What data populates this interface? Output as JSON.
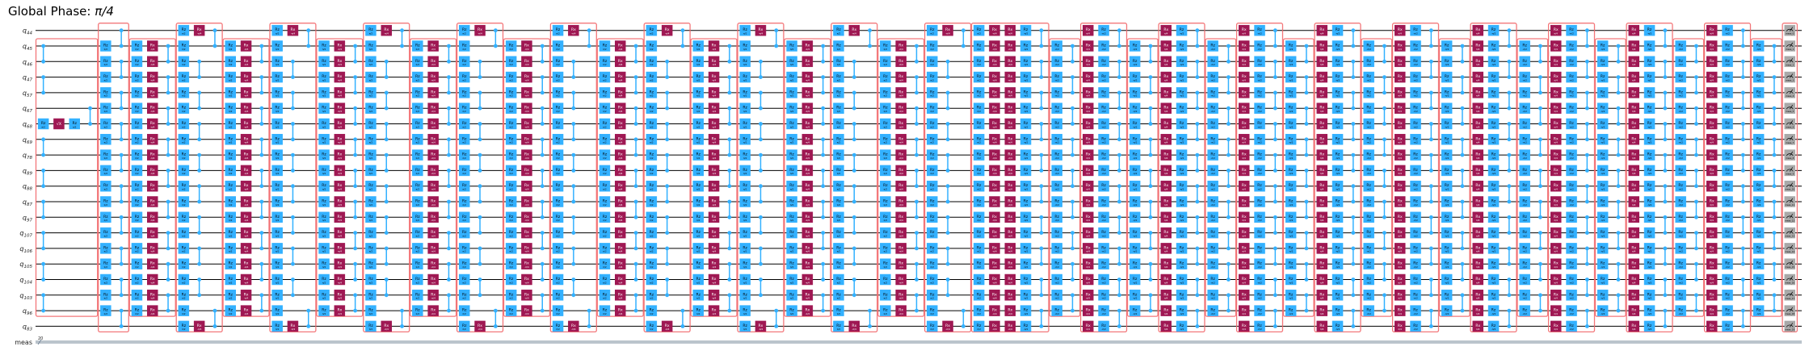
{
  "title": {
    "prefix": "Global Phase: ",
    "phase": "π/4"
  },
  "qubits": [
    "q44",
    "q45",
    "q46",
    "q47",
    "q57",
    "q67",
    "q68",
    "q69",
    "q78",
    "q89",
    "q88",
    "q87",
    "q97",
    "q107",
    "q106",
    "q105",
    "q104",
    "q103",
    "q96",
    "q83"
  ],
  "classical": {
    "name": "meas",
    "size": "20"
  },
  "colors": {
    "rotation_z": "#33b1ff",
    "rotation_x": "#9f1853",
    "cz": "#33b1ff",
    "measure": "#a8a8a8",
    "barrier_box": "#f2686c",
    "wire": "#000000",
    "classical_wire": "#778899"
  },
  "block_types": {
    "init": {
      "wires": [
        1,
        18
      ],
      "cols": [
        [
          {
            "cz": [
              1,
              4
            ]
          },
          {
            "cz": [
              7,
              18
            ]
          },
          {
            "g": "Rz",
            "p": "π/2",
            "q": [
              6,
              6
            ]
          }
        ],
        [
          {
            "g": "√X",
            "p": "",
            "q": [
              6,
              6
            ]
          }
        ],
        [
          {
            "g": "Rz",
            "p": "π/2",
            "q": [
              6,
              6
            ]
          }
        ],
        [
          {
            "cz": [
              5,
              6
            ]
          }
        ]
      ]
    },
    "full_a": {
      "wires": [
        0,
        19
      ],
      "cols": [
        [
          {
            "g": "Rz",
            "p": "π/2",
            "q": [
              1,
              18
            ]
          }
        ],
        [
          {
            "cz": [
              0,
              19
            ]
          }
        ]
      ]
    },
    "odd": {
      "wires": [
        1,
        18
      ],
      "cols": [
        [
          {
            "g": "Rz",
            "p": "π/2",
            "q": [
              1,
              18
            ]
          }
        ],
        [
          {
            "g": "Rx",
            "p": "-π/4",
            "q": [
              1,
              18
            ]
          }
        ],
        [
          {
            "cz": [
              1,
              18
            ]
          }
        ]
      ]
    },
    "even": {
      "wires": [
        0,
        19
      ],
      "cols": [
        [
          {
            "g": "Rz",
            "p": "π/2",
            "q": [
              0,
              19
            ]
          }
        ],
        [
          {
            "g": "Rx",
            "p": "-π/4",
            "q": [
              0,
              0
            ]
          },
          {
            "g": "Rx",
            "p": "-π/4",
            "q": [
              19,
              19
            ]
          },
          {
            "cz": [
              2,
              17
            ]
          }
        ],
        [
          {
            "cz": [
              0,
              1
            ]
          },
          {
            "cz": [
              18,
              19
            ]
          }
        ]
      ]
    },
    "wide": {
      "wires": [
        0,
        19
      ],
      "cols": [
        [
          {
            "g": "Rz",
            "p": "π/2",
            "q": [
              0,
              19
            ]
          }
        ],
        [
          {
            "g": "Rx",
            "p": "-π/4",
            "q": [
              0,
              19
            ]
          }
        ],
        [
          {
            "g": "Rx",
            "p": "-π/4",
            "q": [
              0,
              19
            ]
          }
        ],
        [
          {
            "g": "Rz",
            "p": "-π/2",
            "q": [
              0,
              19
            ]
          }
        ],
        [
          {
            "cz": [
              0,
              19
            ]
          }
        ]
      ]
    },
    "inner": {
      "wires": [
        1,
        18
      ],
      "cols": [
        [
          {
            "g": "Rz",
            "p": "-π/2",
            "q": [
              1,
              18
            ]
          }
        ],
        [
          {
            "cz": [
              1,
              18
            ]
          }
        ]
      ]
    },
    "full_b": {
      "wires": [
        0,
        19
      ],
      "cols": [
        [
          {
            "g": "Rx",
            "p": "π/4",
            "q": [
              0,
              19
            ]
          }
        ],
        [
          {
            "g": "Rz",
            "p": "-π/2",
            "q": [
              0,
              19
            ]
          }
        ],
        [
          {
            "cz": [
              0,
              19
            ]
          }
        ]
      ]
    },
    "measure": {
      "wires": [
        0,
        19
      ],
      "cols": [
        [
          {
            "g": "M",
            "p": "meas",
            "q": [
              0,
              19
            ]
          }
        ]
      ]
    }
  },
  "sequence": [
    "init",
    "full_a",
    "odd",
    "even",
    "odd",
    "even",
    "odd",
    "even",
    "odd",
    "even",
    "odd",
    "even",
    "odd",
    "even",
    "odd",
    "even",
    "odd",
    "even",
    "odd",
    "even",
    "wide",
    "inner",
    "full_b",
    "inner",
    "full_b",
    "inner",
    "full_b",
    "inner",
    "full_b",
    "inner",
    "full_b",
    "inner",
    "full_b",
    "inner",
    "full_b",
    "inner",
    "full_b",
    "inner",
    "full_b",
    "inner",
    "measure"
  ]
}
